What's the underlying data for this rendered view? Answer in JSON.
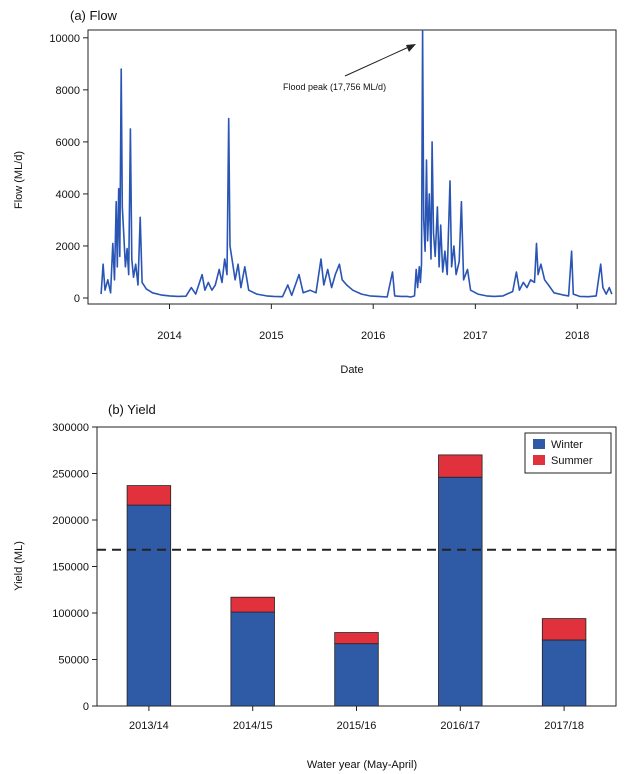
{
  "chart_data": [
    {
      "type": "line",
      "title": "(a) Flow",
      "xlabel": "Date",
      "ylabel": "Flow (ML/d)",
      "ylim": [
        0,
        10300
      ],
      "xlim": [
        "2013-03-15",
        "2018-05-20"
      ],
      "yticks": [
        "0",
        "2000",
        "4000",
        "6000",
        "8000",
        "10000"
      ],
      "xticks": [
        "2014",
        "2015",
        "2016",
        "2017",
        "2018"
      ],
      "annotation": "Flood peak (17,756 ML/d)",
      "line_color": "#2a55b4",
      "series": [
        {
          "points": [
            [
              "2013-05-01",
              150
            ],
            [
              "2013-05-08",
              1300
            ],
            [
              "2013-05-15",
              300
            ],
            [
              "2013-05-25",
              700
            ],
            [
              "2013-06-04",
              200
            ],
            [
              "2013-06-12",
              2100
            ],
            [
              "2013-06-18",
              700
            ],
            [
              "2013-06-24",
              3700
            ],
            [
              "2013-06-28",
              1200
            ],
            [
              "2013-07-03",
              4200
            ],
            [
              "2013-07-07",
              1600
            ],
            [
              "2013-07-12",
              8800
            ],
            [
              "2013-07-16",
              3500
            ],
            [
              "2013-07-21",
              2500
            ],
            [
              "2013-07-27",
              1200
            ],
            [
              "2013-08-02",
              1900
            ],
            [
              "2013-08-08",
              900
            ],
            [
              "2013-08-14",
              6500
            ],
            [
              "2013-08-19",
              1500
            ],
            [
              "2013-08-25",
              800
            ],
            [
              "2013-09-02",
              1300
            ],
            [
              "2013-09-10",
              500
            ],
            [
              "2013-09-18",
              3100
            ],
            [
              "2013-09-25",
              600
            ],
            [
              "2013-10-10",
              350
            ],
            [
              "2013-11-01",
              200
            ],
            [
              "2013-12-01",
              120
            ],
            [
              "2014-01-01",
              80
            ],
            [
              "2014-02-01",
              60
            ],
            [
              "2014-03-01",
              70
            ],
            [
              "2014-03-20",
              400
            ],
            [
              "2014-04-05",
              150
            ],
            [
              "2014-04-28",
              900
            ],
            [
              "2014-05-08",
              300
            ],
            [
              "2014-05-20",
              600
            ],
            [
              "2014-06-02",
              300
            ],
            [
              "2014-06-14",
              500
            ],
            [
              "2014-06-28",
              1100
            ],
            [
              "2014-07-08",
              600
            ],
            [
              "2014-07-18",
              1500
            ],
            [
              "2014-07-26",
              900
            ],
            [
              "2014-08-01",
              6900
            ],
            [
              "2014-08-06",
              2000
            ],
            [
              "2014-08-16",
              1300
            ],
            [
              "2014-08-24",
              700
            ],
            [
              "2014-09-04",
              1300
            ],
            [
              "2014-09-14",
              400
            ],
            [
              "2014-09-28",
              1200
            ],
            [
              "2014-10-12",
              300
            ],
            [
              "2014-11-10",
              150
            ],
            [
              "2014-12-15",
              80
            ],
            [
              "2015-01-10",
              60
            ],
            [
              "2015-02-10",
              50
            ],
            [
              "2015-03-01",
              500
            ],
            [
              "2015-03-15",
              100
            ],
            [
              "2015-04-10",
              900
            ],
            [
              "2015-04-25",
              200
            ],
            [
              "2015-05-20",
              300
            ],
            [
              "2015-06-10",
              200
            ],
            [
              "2015-06-28",
              1500
            ],
            [
              "2015-07-08",
              500
            ],
            [
              "2015-07-22",
              1100
            ],
            [
              "2015-08-05",
              400
            ],
            [
              "2015-08-18",
              900
            ],
            [
              "2015-09-02",
              1300
            ],
            [
              "2015-09-12",
              700
            ],
            [
              "2015-09-28",
              500
            ],
            [
              "2015-10-20",
              300
            ],
            [
              "2015-11-20",
              150
            ],
            [
              "2015-12-20",
              80
            ],
            [
              "2016-01-20",
              60
            ],
            [
              "2016-02-20",
              40
            ],
            [
              "2016-03-10",
              1000
            ],
            [
              "2016-03-18",
              80
            ],
            [
              "2016-04-10",
              60
            ],
            [
              "2016-05-01",
              60
            ],
            [
              "2016-05-15",
              40
            ],
            [
              "2016-05-28",
              80
            ],
            [
              "2016-06-03",
              1100
            ],
            [
              "2016-06-08",
              400
            ],
            [
              "2016-06-14",
              1200
            ],
            [
              "2016-06-18",
              600
            ],
            [
              "2016-06-22",
              1300
            ],
            [
              "2016-06-26",
              17756
            ],
            [
              "2016-06-30",
              3000
            ],
            [
              "2016-07-05",
              1800
            ],
            [
              "2016-07-10",
              5300
            ],
            [
              "2016-07-14",
              2200
            ],
            [
              "2016-07-20",
              4000
            ],
            [
              "2016-07-26",
              1500
            ],
            [
              "2016-07-30",
              6000
            ],
            [
              "2016-08-04",
              2500
            ],
            [
              "2016-08-10",
              1600
            ],
            [
              "2016-08-18",
              3500
            ],
            [
              "2016-08-24",
              1200
            ],
            [
              "2016-08-30",
              2800
            ],
            [
              "2016-09-06",
              1000
            ],
            [
              "2016-09-14",
              1800
            ],
            [
              "2016-09-22",
              900
            ],
            [
              "2016-10-02",
              4500
            ],
            [
              "2016-10-08",
              1200
            ],
            [
              "2016-10-16",
              2000
            ],
            [
              "2016-10-24",
              900
            ],
            [
              "2016-11-04",
              1400
            ],
            [
              "2016-11-12",
              3700
            ],
            [
              "2016-11-20",
              700
            ],
            [
              "2016-12-04",
              1100
            ],
            [
              "2016-12-15",
              300
            ],
            [
              "2017-01-10",
              150
            ],
            [
              "2017-02-10",
              80
            ],
            [
              "2017-03-10",
              60
            ],
            [
              "2017-04-10",
              80
            ],
            [
              "2017-05-15",
              250
            ],
            [
              "2017-05-28",
              1000
            ],
            [
              "2017-06-08",
              300
            ],
            [
              "2017-06-22",
              600
            ],
            [
              "2017-07-05",
              400
            ],
            [
              "2017-07-18",
              700
            ],
            [
              "2017-08-01",
              600
            ],
            [
              "2017-08-08",
              2100
            ],
            [
              "2017-08-14",
              900
            ],
            [
              "2017-08-24",
              1300
            ],
            [
              "2017-09-06",
              700
            ],
            [
              "2017-09-20",
              500
            ],
            [
              "2017-10-10",
              200
            ],
            [
              "2017-11-10",
              120
            ],
            [
              "2017-12-01",
              80
            ],
            [
              "2017-12-12",
              1800
            ],
            [
              "2017-12-18",
              150
            ],
            [
              "2018-01-10",
              60
            ],
            [
              "2018-02-10",
              50
            ],
            [
              "2018-03-10",
              80
            ],
            [
              "2018-03-26",
              1300
            ],
            [
              "2018-04-03",
              400
            ],
            [
              "2018-04-15",
              150
            ],
            [
              "2018-04-26",
              400
            ],
            [
              "2018-05-05",
              150
            ]
          ]
        }
      ]
    },
    {
      "type": "bar",
      "stacked": true,
      "title": "(b) Yield",
      "xlabel": "Water year (May-April)",
      "ylabel": "Yield (ML)",
      "ylim": [
        0,
        300000
      ],
      "yticks": [
        "0",
        "50000",
        "100000",
        "150000",
        "200000",
        "250000",
        "300000"
      ],
      "categories": [
        "2013/14",
        "2014/15",
        "2015/16",
        "2016/17",
        "2017/18"
      ],
      "reference_line": 168000,
      "legend_position": "top-right",
      "series": [
        {
          "name": "Winter",
          "color": "#2f5aa6",
          "values": [
            216000,
            101000,
            67000,
            246000,
            71000
          ]
        },
        {
          "name": "Summer",
          "color": "#e0313c",
          "values": [
            21000,
            16000,
            12000,
            24000,
            23000
          ]
        }
      ]
    }
  ]
}
